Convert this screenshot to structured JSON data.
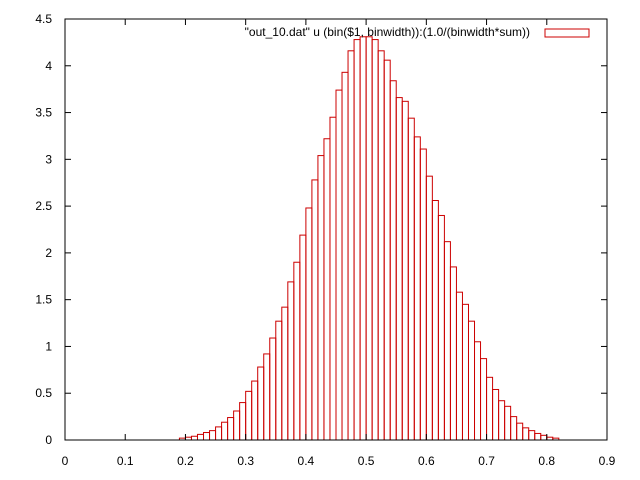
{
  "chart_data": {
    "type": "bar",
    "title": "",
    "xlabel": "",
    "ylabel": "",
    "xlim": [
      0,
      0.9
    ],
    "ylim": [
      0,
      4.5
    ],
    "grid": false,
    "legend_position": "top-right",
    "x_ticks": [
      "0",
      "0.1",
      "0.2",
      "0.3",
      "0.4",
      "0.5",
      "0.6",
      "0.7",
      "0.8",
      "0.9"
    ],
    "y_ticks": [
      "0",
      "0.5",
      "1",
      "1.5",
      "2",
      "2.5",
      "3",
      "3.5",
      "4",
      "4.5"
    ],
    "bin_width": 0.01,
    "series": [
      {
        "name": "\"out_10.dat\" u (bin($1, binwidth)):(1.0/(binwidth*sum))",
        "color": "#cc0000",
        "x": [
          0.19,
          0.2,
          0.21,
          0.22,
          0.23,
          0.24,
          0.25,
          0.26,
          0.27,
          0.28,
          0.29,
          0.3,
          0.31,
          0.32,
          0.33,
          0.34,
          0.35,
          0.36,
          0.37,
          0.38,
          0.39,
          0.4,
          0.41,
          0.42,
          0.43,
          0.44,
          0.45,
          0.46,
          0.47,
          0.48,
          0.49,
          0.5,
          0.51,
          0.52,
          0.53,
          0.54,
          0.55,
          0.56,
          0.57,
          0.58,
          0.59,
          0.6,
          0.61,
          0.62,
          0.63,
          0.64,
          0.65,
          0.66,
          0.67,
          0.68,
          0.69,
          0.7,
          0.71,
          0.72,
          0.73,
          0.74,
          0.75,
          0.76,
          0.77,
          0.78,
          0.79,
          0.8,
          0.81
        ],
        "values": [
          0.02,
          0.03,
          0.04,
          0.06,
          0.08,
          0.1,
          0.14,
          0.19,
          0.24,
          0.31,
          0.4,
          0.52,
          0.63,
          0.78,
          0.92,
          1.09,
          1.27,
          1.42,
          1.69,
          1.9,
          2.19,
          2.48,
          2.78,
          3.04,
          3.22,
          3.45,
          3.74,
          3.93,
          4.16,
          4.28,
          4.31,
          4.31,
          4.28,
          4.16,
          4.06,
          3.84,
          3.66,
          3.62,
          3.44,
          3.24,
          3.11,
          2.82,
          2.56,
          2.4,
          2.12,
          1.85,
          1.58,
          1.45,
          1.27,
          1.05,
          0.87,
          0.67,
          0.54,
          0.42,
          0.36,
          0.25,
          0.18,
          0.13,
          0.1,
          0.07,
          0.05,
          0.03,
          0.02
        ]
      }
    ]
  }
}
